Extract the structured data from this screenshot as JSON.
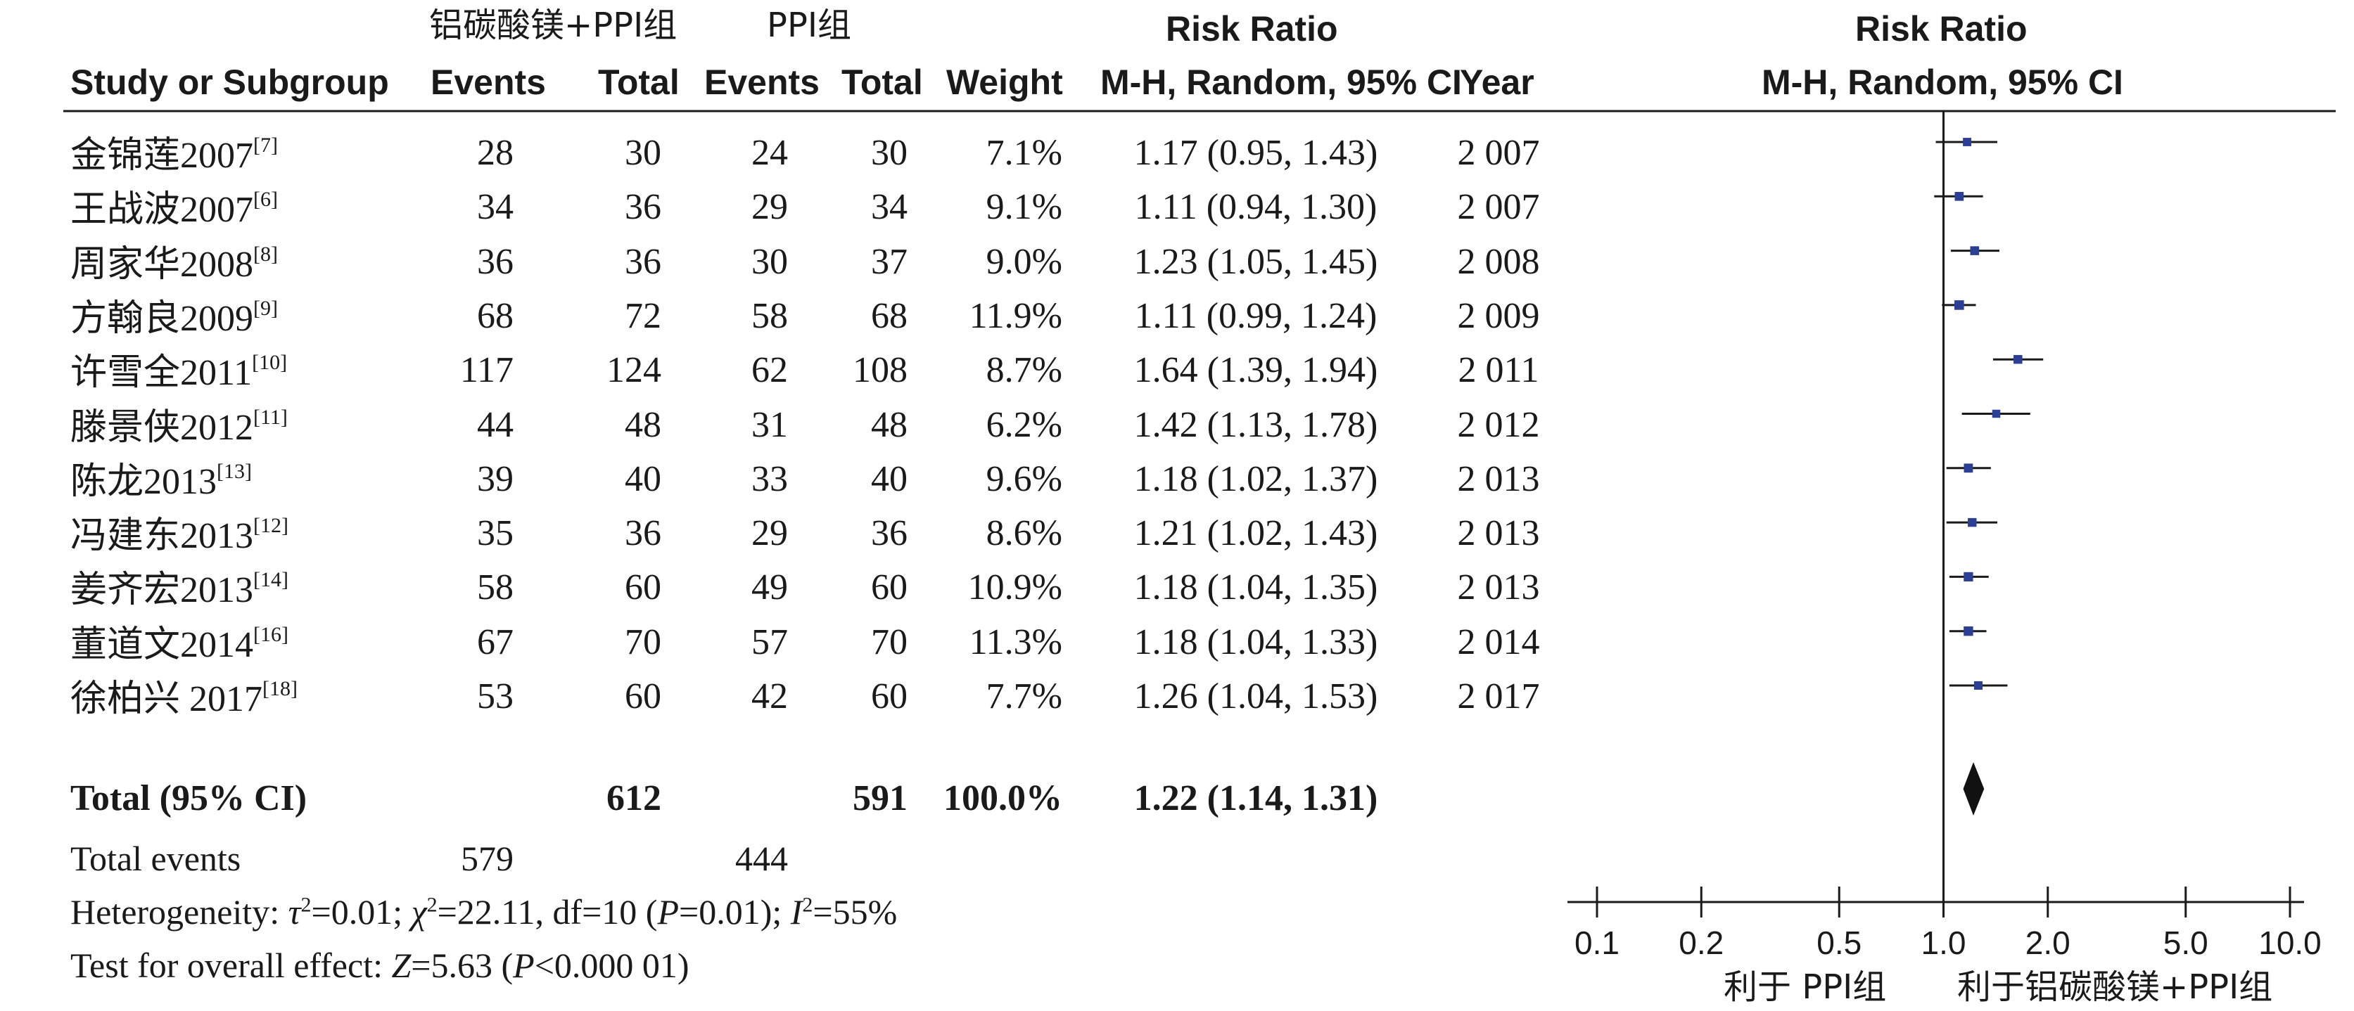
{
  "header": {
    "group1": "铝碳酸镁+PPI组",
    "group2": "PPI组",
    "risk_ratio": "Risk Ratio",
    "risk_ratio_plot": "Risk Ratio",
    "study": "Study or Subgroup",
    "events1": "Events",
    "total1": "Total",
    "events2": "Events",
    "total2": "Total",
    "weight": "Weight",
    "method": "M-H, Random, 95% CI",
    "year": "Year",
    "method_plot": "M-H, Random, 95% CI"
  },
  "studies": [
    {
      "name": "金锦莲2007",
      "ref": "[7]",
      "e1": "28",
      "t1": "30",
      "e2": "24",
      "t2": "30",
      "weight": "7.1%",
      "ci": "1.17 (0.95, 1.43)",
      "year": "2 007"
    },
    {
      "name": "王战波2007",
      "ref": "[6]",
      "e1": "34",
      "t1": "36",
      "e2": "29",
      "t2": "34",
      "weight": "9.1%",
      "ci": "1.11 (0.94, 1.30)",
      "year": "2 007"
    },
    {
      "name": "周家华2008",
      "ref": "[8]",
      "e1": "36",
      "t1": "36",
      "e2": "30",
      "t2": "37",
      "weight": "9.0%",
      "ci": "1.23 (1.05, 1.45)",
      "year": "2 008"
    },
    {
      "name": "方翰良2009",
      "ref": "[9]",
      "e1": "68",
      "t1": "72",
      "e2": "58",
      "t2": "68",
      "weight": "11.9%",
      "ci": "1.11 (0.99, 1.24)",
      "year": "2 009"
    },
    {
      "name": "许雪全2011",
      "ref": "[10]",
      "e1": "117",
      "t1": "124",
      "e2": "62",
      "t2": "108",
      "weight": "8.7%",
      "ci": "1.64 (1.39, 1.94)",
      "year": "2 011"
    },
    {
      "name": "滕景侠2012",
      "ref": "[11]",
      "e1": "44",
      "t1": "48",
      "e2": "31",
      "t2": "48",
      "weight": "6.2%",
      "ci": "1.42 (1.13, 1.78)",
      "year": "2 012"
    },
    {
      "name": "陈龙2013",
      "ref": "[13]",
      "e1": "39",
      "t1": "40",
      "e2": "33",
      "t2": "40",
      "weight": "9.6%",
      "ci": "1.18 (1.02, 1.37)",
      "year": "2 013"
    },
    {
      "name": "冯建东2013",
      "ref": "[12]",
      "e1": "35",
      "t1": "36",
      "e2": "29",
      "t2": "36",
      "weight": "8.6%",
      "ci": "1.21 (1.02, 1.43)",
      "year": "2 013"
    },
    {
      "name": "姜齐宏2013",
      "ref": "[14]",
      "e1": "58",
      "t1": "60",
      "e2": "49",
      "t2": "60",
      "weight": "10.9%",
      "ci": "1.18 (1.04, 1.35)",
      "year": "2 013"
    },
    {
      "name": "董道文2014",
      "ref": "[16]",
      "e1": "67",
      "t1": "70",
      "e2": "57",
      "t2": "70",
      "weight": "11.3%",
      "ci": "1.18 (1.04, 1.33)",
      "year": "2 014"
    },
    {
      "name": "徐柏兴 2017",
      "ref": "[18]",
      "e1": "53",
      "t1": "60",
      "e2": "42",
      "t2": "60",
      "weight": "7.7%",
      "ci": "1.26 (1.04, 1.53)",
      "year": "2 017"
    }
  ],
  "total": {
    "label": "Total (95% CI)",
    "t1": "612",
    "t2": "591",
    "weight": "100.0%",
    "ci": "1.22 (1.14, 1.31)"
  },
  "total_events": {
    "label": "Total events",
    "e1": "579",
    "e2": "444"
  },
  "heterogeneity": {
    "prefix": "Heterogeneity: ",
    "tau": "τ",
    "tau_val": "=0.01; ",
    "chi": "χ",
    "chi_val": "=22.11, df=10 (",
    "p": "P",
    "p_val": "=0.01); ",
    "i": "I",
    "i_val": "=55%",
    "sup": "2"
  },
  "overall": {
    "prefix": "Test for overall effect: ",
    "z": "Z",
    "z_val": "=5.63 (",
    "p": "P",
    "p_val": "<0.000 01)"
  },
  "favours": {
    "left": "利于 PPI组",
    "right": "利于铝碳酸镁+PPI组"
  },
  "colors": {
    "marker": "#2b3f94",
    "line": "#1a1a1a",
    "diamond": "#111111"
  },
  "chart_data": {
    "type": "forest",
    "measure": "Risk Ratio",
    "method": "M-H, Random, 95% CI",
    "x_scale": "log",
    "xlim": [
      0.1,
      10.0
    ],
    "x_ticks": [
      0.1,
      0.2,
      0.5,
      1.0,
      2.0,
      5.0,
      10.0
    ],
    "x_tick_labels": [
      "0.1",
      "0.2",
      "0.5",
      "1.0",
      "2.0",
      "5.0",
      "10.0"
    ],
    "null_value": 1.0,
    "studies": [
      {
        "name": "金锦莲2007",
        "rr": 1.17,
        "lo": 0.95,
        "hi": 1.43,
        "weight": 7.1
      },
      {
        "name": "王战波2007",
        "rr": 1.11,
        "lo": 0.94,
        "hi": 1.3,
        "weight": 9.1
      },
      {
        "name": "周家华2008",
        "rr": 1.23,
        "lo": 1.05,
        "hi": 1.45,
        "weight": 9.0
      },
      {
        "name": "方翰良2009",
        "rr": 1.11,
        "lo": 0.99,
        "hi": 1.24,
        "weight": 11.9
      },
      {
        "name": "许雪全2011",
        "rr": 1.64,
        "lo": 1.39,
        "hi": 1.94,
        "weight": 8.7
      },
      {
        "name": "滕景侠2012",
        "rr": 1.42,
        "lo": 1.13,
        "hi": 1.78,
        "weight": 6.2
      },
      {
        "name": "陈龙2013",
        "rr": 1.18,
        "lo": 1.02,
        "hi": 1.37,
        "weight": 9.6
      },
      {
        "name": "冯建东2013",
        "rr": 1.21,
        "lo": 1.02,
        "hi": 1.43,
        "weight": 8.6
      },
      {
        "name": "姜齐宏2013",
        "rr": 1.18,
        "lo": 1.04,
        "hi": 1.35,
        "weight": 10.9
      },
      {
        "name": "董道文2014",
        "rr": 1.18,
        "lo": 1.04,
        "hi": 1.33,
        "weight": 11.3
      },
      {
        "name": "徐柏兴 2017",
        "rr": 1.26,
        "lo": 1.04,
        "hi": 1.53,
        "weight": 7.7
      }
    ],
    "pooled": {
      "rr": 1.22,
      "lo": 1.14,
      "hi": 1.31
    }
  }
}
